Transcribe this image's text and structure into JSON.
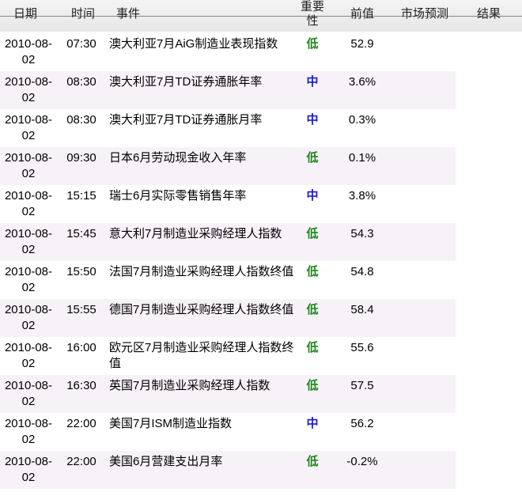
{
  "header": {
    "date": "日期",
    "time": "时间",
    "event": "事件",
    "importance": "重要性",
    "previous": "前值",
    "forecast": "市场预测",
    "result": "结果"
  },
  "colors": {
    "low": "#1a8a1a",
    "mid": "#1a1acc"
  },
  "rows": [
    {
      "date": "2010-08-02",
      "time": "07:30",
      "event": "澳大利亚7月AiG制造业表现指数",
      "importance": "低",
      "previous": "52.9"
    },
    {
      "date": "2010-08-02",
      "time": "08:30",
      "event": "澳大利亚7月TD证券通胀年率",
      "importance": "中",
      "previous": "3.6%"
    },
    {
      "date": "2010-08-02",
      "time": "08:30",
      "event": "澳大利亚7月TD证券通胀月率",
      "importance": "中",
      "previous": "0.3%"
    },
    {
      "date": "2010-08-02",
      "time": "09:30",
      "event": "日本6月劳动现金收入年率",
      "importance": "低",
      "previous": "0.1%"
    },
    {
      "date": "2010-08-02",
      "time": "15:15",
      "event": "瑞士6月实际零售销售年率",
      "importance": "中",
      "previous": "3.8%"
    },
    {
      "date": "2010-08-02",
      "time": "15:45",
      "event": "意大利7月制造业采购经理人指数",
      "importance": "低",
      "previous": "54.3"
    },
    {
      "date": "2010-08-02",
      "time": "15:50",
      "event": "法国7月制造业采购经理人指数终值",
      "importance": "低",
      "previous": "54.8"
    },
    {
      "date": "2010-08-02",
      "time": "15:55",
      "event": "德国7月制造业采购经理人指数终值",
      "importance": "低",
      "previous": "58.4"
    },
    {
      "date": "2010-08-02",
      "time": "16:00",
      "event": "欧元区7月制造业采购经理人指数终值",
      "importance": "低",
      "previous": "55.6"
    },
    {
      "date": "2010-08-02",
      "time": "16:30",
      "event": "英国7月制造业采购经理人指数",
      "importance": "低",
      "previous": "57.5"
    },
    {
      "date": "2010-08-02",
      "time": "22:00",
      "event": "美国7月ISM制造业指数",
      "importance": "中",
      "previous": "56.2"
    },
    {
      "date": "2010-08-02",
      "time": "22:00",
      "event": "美国6月营建支出月率",
      "importance": "低",
      "previous": "-0.2%"
    }
  ]
}
